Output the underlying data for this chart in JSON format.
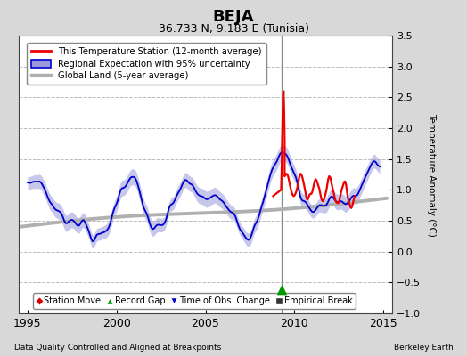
{
  "title": "BEJA",
  "subtitle": "36.733 N, 9.183 E (Tunisia)",
  "ylabel": "Temperature Anomaly (°C)",
  "footer_left": "Data Quality Controlled and Aligned at Breakpoints",
  "footer_right": "Berkeley Earth",
  "xlim": [
    1994.5,
    2015.5
  ],
  "ylim": [
    -1.0,
    3.5
  ],
  "yticks": [
    -1,
    -0.5,
    0,
    0.5,
    1,
    1.5,
    2,
    2.5,
    3,
    3.5
  ],
  "xticks": [
    1995,
    2000,
    2005,
    2010,
    2015
  ],
  "bg_color": "#d8d8d8",
  "plot_bg_color": "#ffffff",
  "grid_color": "#bbbbbb",
  "regional_line_color": "#0000cc",
  "regional_fill_color": "#9999dd",
  "station_line_color": "#ee0000",
  "global_line_color": "#b0b0b0",
  "record_gap_marker_color": "#009900",
  "record_gap_x": 2009.3,
  "record_gap_y": -0.62,
  "vertical_line_x": 2009.3,
  "vertical_line_color": "#888888"
}
